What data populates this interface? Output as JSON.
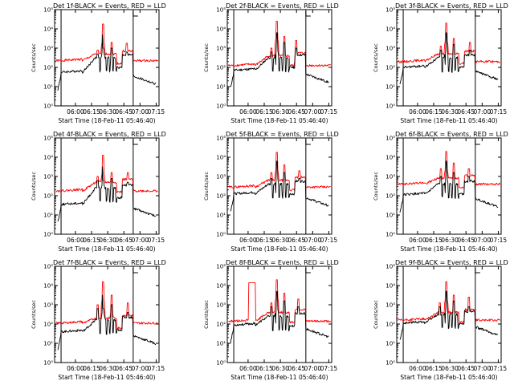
{
  "figure": {
    "y_axis_label": "Counts/sec",
    "x_axis_label": "Start Time (18-Feb-11 05:46:40)",
    "x_ticks": [
      "06:00",
      "06:15",
      "06:30",
      "06:45",
      "07:00",
      "07:15"
    ],
    "y_ticks": [
      "10⁰",
      "10¹",
      "10²",
      "10³",
      "10⁴",
      "10⁵"
    ],
    "x_range_minutes": [
      -6,
      91
    ],
    "y_log_range": [
      0,
      5
    ],
    "vertical_markers_minutes": [
      0,
      67
    ],
    "colors": {
      "events": "#000000",
      "lld": "#ff0000"
    }
  },
  "chart_data": [
    {
      "type": "line",
      "title": "Det 1f-BLACK = Events, RED = LLD",
      "ylabel": "Counts/sec",
      "xlabel": "Start Time (18-Feb-11 05:46:40)",
      "series": [
        {
          "color": "#ff0000",
          "base": 2.35,
          "mid": 2.7,
          "spikes": [
            [
              34,
              2.9
            ],
            [
              39,
              4.25
            ],
            [
              47,
              3.3
            ],
            [
              61,
              3.25
            ]
          ]
        },
        {
          "color": "#000000",
          "base": 1.75,
          "mid": 2.5,
          "spikes": [
            [
              34,
              2.7
            ],
            [
              39,
              3.7
            ],
            [
              47,
              3.0
            ],
            [
              61,
              2.8
            ]
          ]
        }
      ]
    },
    {
      "type": "line",
      "title": "Det 2f-BLACK = Events, RED = LLD",
      "ylabel": "Counts/sec",
      "xlabel": "Start Time (18-Feb-11 05:46:40)",
      "series": [
        {
          "color": "#ff0000",
          "base": 2.1,
          "mid": 2.6,
          "spikes": [
            [
              35,
              3.0
            ],
            [
              40,
              4.4
            ],
            [
              47,
              3.6
            ],
            [
              58,
              3.4
            ]
          ]
        },
        {
          "color": "#000000",
          "base": 1.85,
          "mid": 2.5,
          "spikes": [
            [
              35,
              2.8
            ],
            [
              40,
              3.8
            ],
            [
              47,
              3.3
            ],
            [
              58,
              3.0
            ]
          ]
        }
      ]
    },
    {
      "type": "line",
      "title": "Det 3f-BLACK = Events, RED = LLD",
      "ylabel": "Counts/sec",
      "xlabel": "Start Time (18-Feb-11 05:46:40)",
      "series": [
        {
          "color": "#ff0000",
          "base": 2.3,
          "mid": 2.7,
          "spikes": [
            [
              35,
              3.1
            ],
            [
              40,
              4.3
            ],
            [
              47,
              3.5
            ],
            [
              62,
              3.3
            ]
          ]
        },
        {
          "color": "#000000",
          "base": 2.0,
          "mid": 2.5,
          "spikes": [
            [
              35,
              2.9
            ],
            [
              40,
              3.8
            ],
            [
              47,
              3.2
            ],
            [
              62,
              2.9
            ]
          ]
        }
      ]
    },
    {
      "type": "line",
      "title": "Det 4f-BLACK = Events, RED = LLD",
      "ylabel": "Counts/sec",
      "xlabel": "Start Time (18-Feb-11 05:46:40)",
      "series": [
        {
          "color": "#ff0000",
          "base": 2.25,
          "mid": 2.7,
          "spikes": [
            [
              34,
              3.0
            ],
            [
              39,
              4.1
            ],
            [
              47,
              3.2
            ],
            [
              62,
              3.2
            ]
          ]
        },
        {
          "color": "#000000",
          "base": 1.55,
          "mid": 2.4,
          "spikes": [
            [
              34,
              2.8
            ],
            [
              39,
              3.5
            ],
            [
              47,
              2.9
            ],
            [
              62,
              2.7
            ]
          ]
        }
      ]
    },
    {
      "type": "line",
      "title": "Det 5f-BLACK = Events, RED = LLD",
      "ylabel": "Counts/sec",
      "xlabel": "Start Time (18-Feb-11 05:46:40)",
      "series": [
        {
          "color": "#ff0000",
          "base": 2.45,
          "mid": 2.8,
          "spikes": [
            [
              35,
              3.2
            ],
            [
              40,
              4.25
            ],
            [
              47,
              3.6
            ],
            [
              61,
              3.3
            ]
          ]
        },
        {
          "color": "#000000",
          "base": 2.1,
          "mid": 2.6,
          "spikes": [
            [
              35,
              2.9
            ],
            [
              40,
              3.8
            ],
            [
              47,
              3.2
            ],
            [
              61,
              2.9
            ]
          ]
        }
      ]
    },
    {
      "type": "line",
      "title": "Det 6f-BLACK = Events, RED = LLD",
      "ylabel": "Counts/sec",
      "xlabel": "Start Time (18-Feb-11 05:46:40)",
      "series": [
        {
          "color": "#ff0000",
          "base": 2.6,
          "mid": 2.9,
          "spikes": [
            [
              35,
              3.4
            ],
            [
              40,
              4.3
            ],
            [
              47,
              3.7
            ],
            [
              61,
              3.4
            ]
          ]
        },
        {
          "color": "#000000",
          "base": 2.05,
          "mid": 2.6,
          "spikes": [
            [
              35,
              3.0
            ],
            [
              40,
              3.8
            ],
            [
              47,
              3.2
            ],
            [
              61,
              3.0
            ]
          ]
        }
      ]
    },
    {
      "type": "line",
      "title": "Det 7f-BLACK = Events, RED = LLD",
      "ylabel": "Counts/sec",
      "xlabel": "Start Time (18-Feb-11 05:46:40)",
      "series": [
        {
          "color": "#ff0000",
          "base": 2.05,
          "mid": 2.3,
          "spikes": [
            [
              34,
              3.0
            ],
            [
              39,
              4.2
            ],
            [
              47,
              3.5
            ],
            [
              62,
              3.1
            ]
          ]
        },
        {
          "color": "#000000",
          "base": 1.6,
          "mid": 2.2,
          "spikes": [
            [
              34,
              2.8
            ],
            [
              39,
              3.5
            ],
            [
              47,
              3.0
            ],
            [
              62,
              2.6
            ]
          ]
        }
      ]
    },
    {
      "type": "line",
      "title": "Det 8f-BLACK = Events, RED = LLD",
      "ylabel": "Counts/sec",
      "xlabel": "Start Time (18-Feb-11 05:46:40)",
      "series": [
        {
          "color": "#ff0000",
          "base": 2.15,
          "mid": 2.6,
          "spikes": [
            [
              35,
              3.1
            ],
            [
              40,
              4.3
            ],
            [
              47,
              3.6
            ],
            [
              60,
              3.3
            ]
          ]
        },
        {
          "color": "#000000",
          "base": 1.95,
          "mid": 2.4,
          "spikes": [
            [
              35,
              2.9
            ],
            [
              40,
              3.7
            ],
            [
              47,
              3.2
            ],
            [
              60,
              2.9
            ]
          ]
        }
      ],
      "red_plateau": {
        "from": 14,
        "to": 20,
        "level": 4.15
      }
    },
    {
      "type": "line",
      "title": "Det 9f-BLACK = Events, RED = LLD",
      "ylabel": "Counts/sec",
      "xlabel": "Start Time (18-Feb-11 05:46:40)",
      "series": [
        {
          "color": "#ff0000",
          "base": 2.2,
          "mid": 2.6,
          "spikes": [
            [
              34,
              3.1
            ],
            [
              40,
              4.2
            ],
            [
              47,
              3.5
            ],
            [
              61,
              3.4
            ]
          ]
        },
        {
          "color": "#000000",
          "base": 2.05,
          "mid": 2.5,
          "spikes": [
            [
              34,
              2.9
            ],
            [
              40,
              3.7
            ],
            [
              47,
              3.2
            ],
            [
              61,
              2.9
            ]
          ]
        }
      ]
    }
  ]
}
